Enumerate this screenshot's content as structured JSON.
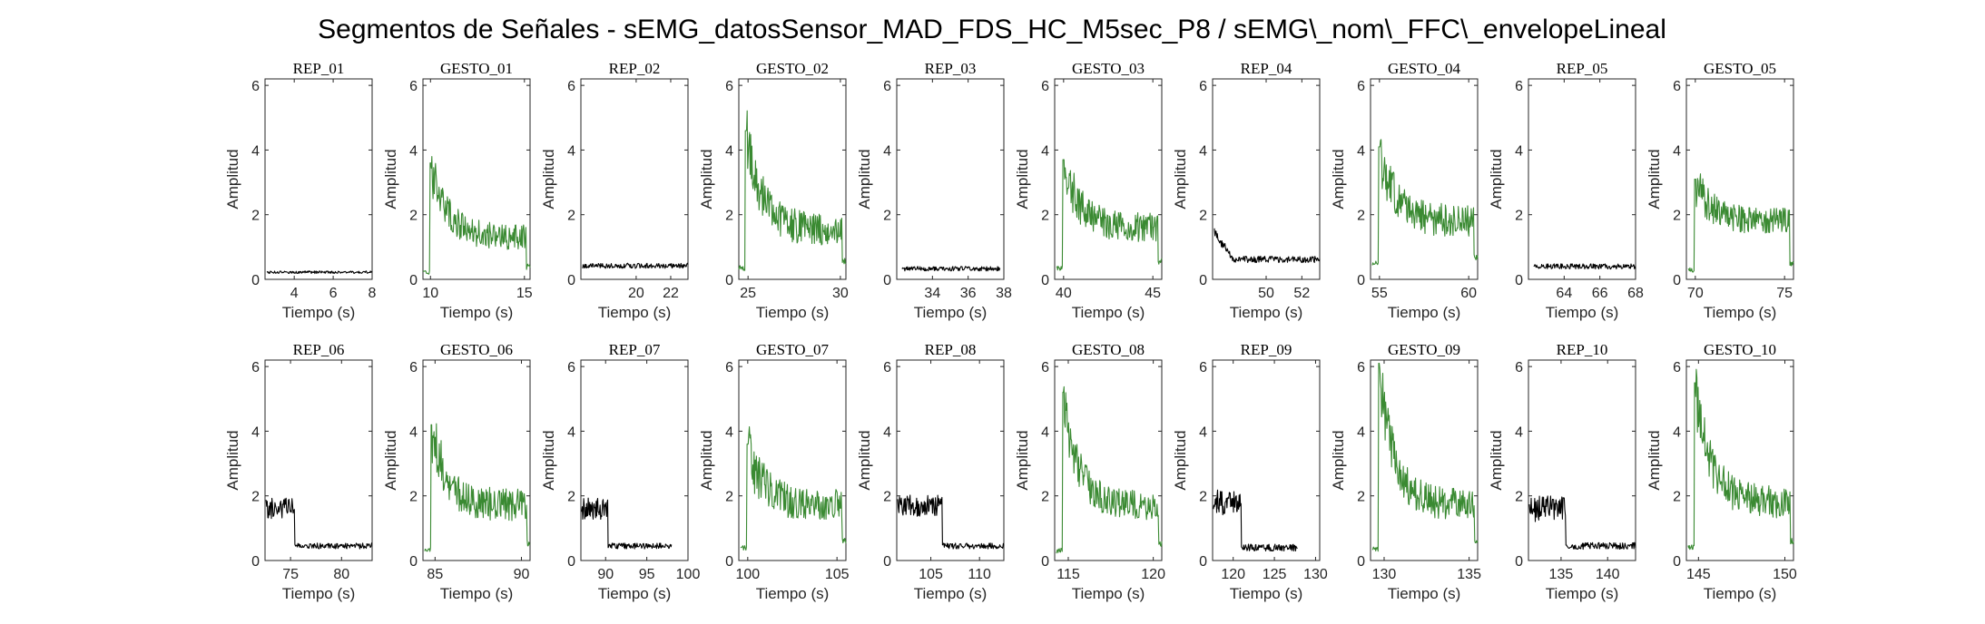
{
  "figure_title": "Segmentos de Señales - sEMG_datosSensor_MAD_FDS_HC_M5sec_P8 / sEMG\\_nom\\_FFC\\_envelopeLineal",
  "colors": {
    "rep": "#000000",
    "gesto": "#3a8a32",
    "axis": "#262626"
  },
  "chart_data": [
    {
      "type": "line",
      "title": "REP_01",
      "xlabel": "Tiempo (s)",
      "ylabel": "Amplitud",
      "xlim": [
        2.5,
        8
      ],
      "ylim": [
        0,
        6.2
      ],
      "xticks": [
        4,
        6,
        8
      ],
      "yticks": [
        0,
        2,
        4,
        6
      ],
      "series": [
        {
          "color": "black",
          "profile": "rest",
          "start": 2.6,
          "end": 8.0,
          "base": 0.22,
          "noise": 0.04,
          "seed": 1
        }
      ]
    },
    {
      "type": "line",
      "title": "GESTO_01",
      "xlabel": "Tiempo (s)",
      "ylabel": "Amplitud",
      "xlim": [
        9.6,
        15.3
      ],
      "ylim": [
        0,
        6.2
      ],
      "xticks": [
        10,
        15
      ],
      "yticks": [
        0,
        2,
        4,
        6
      ],
      "series": [
        {
          "color": "green",
          "profile": "gesture",
          "start": 9.6,
          "end": 15.3,
          "pre": 0.2,
          "peak": 3.6,
          "settle": 1.3,
          "noise": 0.4,
          "seed": 2
        }
      ]
    },
    {
      "type": "line",
      "title": "REP_02",
      "xlabel": "Tiempo (s)",
      "ylabel": "Amplitud",
      "xlim": [
        16.8,
        23
      ],
      "ylim": [
        0,
        6.2
      ],
      "xticks": [
        20,
        22
      ],
      "yticks": [
        0,
        2,
        4,
        6
      ],
      "series": [
        {
          "color": "black",
          "profile": "rest",
          "start": 16.9,
          "end": 23.0,
          "base": 0.42,
          "noise": 0.08,
          "seed": 3
        }
      ]
    },
    {
      "type": "line",
      "title": "GESTO_02",
      "xlabel": "Tiempo (s)",
      "ylabel": "Amplitud",
      "xlim": [
        24.5,
        30.3
      ],
      "ylim": [
        0,
        6.2
      ],
      "xticks": [
        25,
        30
      ],
      "yticks": [
        0,
        2,
        4,
        6
      ],
      "series": [
        {
          "color": "green",
          "profile": "gesture",
          "start": 24.5,
          "end": 30.3,
          "pre": 0.35,
          "peak": 4.6,
          "settle": 1.5,
          "noise": 0.5,
          "seed": 4
        }
      ]
    },
    {
      "type": "line",
      "title": "REP_03",
      "xlabel": "Tiempo (s)",
      "ylabel": "Amplitud",
      "xlim": [
        32,
        38
      ],
      "ylim": [
        0,
        6.2
      ],
      "xticks": [
        34,
        36,
        38
      ],
      "yticks": [
        0,
        2,
        4,
        6
      ],
      "series": [
        {
          "color": "black",
          "profile": "rest",
          "start": 32.3,
          "end": 37.8,
          "base": 0.33,
          "noise": 0.07,
          "seed": 5
        }
      ]
    },
    {
      "type": "line",
      "title": "GESTO_03",
      "xlabel": "Tiempo (s)",
      "ylabel": "Amplitud",
      "xlim": [
        39.5,
        45.5
      ],
      "ylim": [
        0,
        6.2
      ],
      "xticks": [
        40,
        45
      ],
      "yticks": [
        0,
        2,
        4,
        6
      ],
      "series": [
        {
          "color": "green",
          "profile": "gesture",
          "start": 39.6,
          "end": 45.5,
          "pre": 0.35,
          "peak": 3.7,
          "settle": 1.6,
          "noise": 0.45,
          "seed": 6
        }
      ]
    },
    {
      "type": "line",
      "title": "REP_04",
      "xlabel": "Tiempo (s)",
      "ylabel": "Amplitud",
      "xlim": [
        47,
        53
      ],
      "ylim": [
        0,
        6.2
      ],
      "xticks": [
        50,
        52
      ],
      "yticks": [
        0,
        2,
        4,
        6
      ],
      "series": [
        {
          "color": "black",
          "profile": "rest",
          "start": 47.1,
          "end": 53.0,
          "base": 0.62,
          "noise": 0.1,
          "seed": 7,
          "startPeak": 1.6
        }
      ]
    },
    {
      "type": "line",
      "title": "GESTO_04",
      "xlabel": "Tiempo (s)",
      "ylabel": "Amplitud",
      "xlim": [
        54.5,
        60.5
      ],
      "ylim": [
        0,
        6.2
      ],
      "xticks": [
        55,
        60
      ],
      "yticks": [
        0,
        2,
        4,
        6
      ],
      "series": [
        {
          "color": "green",
          "profile": "gesture",
          "start": 54.6,
          "end": 60.5,
          "pre": 0.5,
          "peak": 4.1,
          "settle": 1.8,
          "noise": 0.5,
          "seed": 8
        }
      ]
    },
    {
      "type": "line",
      "title": "REP_05",
      "xlabel": "Tiempo (s)",
      "ylabel": "Amplitud",
      "xlim": [
        62,
        68
      ],
      "ylim": [
        0,
        6.2
      ],
      "xticks": [
        64,
        66,
        68
      ],
      "yticks": [
        0,
        2,
        4,
        6
      ],
      "series": [
        {
          "color": "black",
          "profile": "rest",
          "start": 62.3,
          "end": 68.0,
          "base": 0.4,
          "noise": 0.08,
          "seed": 9
        }
      ]
    },
    {
      "type": "line",
      "title": "GESTO_05",
      "xlabel": "Tiempo (s)",
      "ylabel": "Amplitud",
      "xlim": [
        69.5,
        75.5
      ],
      "ylim": [
        0,
        6.2
      ],
      "xticks": [
        70,
        75
      ],
      "yticks": [
        0,
        2,
        4,
        6
      ],
      "series": [
        {
          "color": "green",
          "profile": "gesture",
          "start": 69.6,
          "end": 75.5,
          "pre": 0.3,
          "peak": 3.1,
          "settle": 1.8,
          "noise": 0.4,
          "seed": 10
        }
      ]
    },
    {
      "type": "line",
      "title": "REP_06",
      "xlabel": "Tiempo (s)",
      "ylabel": "Amplitud",
      "xlim": [
        72.5,
        83
      ],
      "ylim": [
        0,
        6.2
      ],
      "xticks": [
        75,
        80
      ],
      "yticks": [
        0,
        2,
        4,
        6
      ],
      "series": [
        {
          "color": "black",
          "profile": "steprest",
          "start": 72.6,
          "end": 83.0,
          "high": 1.6,
          "step": 75.4,
          "base": 0.45,
          "noise": 0.15,
          "seed": 11
        }
      ]
    },
    {
      "type": "line",
      "title": "GESTO_06",
      "xlabel": "Tiempo (s)",
      "ylabel": "Amplitud",
      "xlim": [
        84.3,
        90.5
      ],
      "ylim": [
        0,
        6.2
      ],
      "xticks": [
        85,
        90
      ],
      "yticks": [
        0,
        2,
        4,
        6
      ],
      "series": [
        {
          "color": "green",
          "profile": "gesture",
          "start": 84.4,
          "end": 90.5,
          "pre": 0.35,
          "peak": 4.2,
          "settle": 1.7,
          "noise": 0.5,
          "seed": 12
        }
      ]
    },
    {
      "type": "line",
      "title": "REP_07",
      "xlabel": "Tiempo (s)",
      "ylabel": "Amplitud",
      "xlim": [
        87,
        100
      ],
      "ylim": [
        0,
        6.2
      ],
      "xticks": [
        90,
        95,
        100
      ],
      "yticks": [
        0,
        2,
        4,
        6
      ],
      "series": [
        {
          "color": "black",
          "profile": "steprest",
          "start": 87.1,
          "end": 98.0,
          "high": 1.6,
          "step": 90.3,
          "base": 0.45,
          "noise": 0.15,
          "seed": 13
        }
      ]
    },
    {
      "type": "line",
      "title": "GESTO_07",
      "xlabel": "Tiempo (s)",
      "ylabel": "Amplitud",
      "xlim": [
        99.5,
        105.5
      ],
      "ylim": [
        0,
        6.2
      ],
      "xticks": [
        100,
        105
      ],
      "yticks": [
        0,
        2,
        4,
        6
      ],
      "series": [
        {
          "color": "green",
          "profile": "gesture",
          "start": 99.6,
          "end": 105.5,
          "pre": 0.4,
          "peak": 3.6,
          "settle": 1.7,
          "noise": 0.5,
          "seed": 14
        }
      ]
    },
    {
      "type": "line",
      "title": "REP_08",
      "xlabel": "Tiempo (s)",
      "ylabel": "Amplitud",
      "xlim": [
        101.5,
        112.5
      ],
      "ylim": [
        0,
        6.2
      ],
      "xticks": [
        105,
        110
      ],
      "yticks": [
        0,
        2,
        4,
        6
      ],
      "series": [
        {
          "color": "black",
          "profile": "steprest",
          "start": 101.6,
          "end": 112.5,
          "high": 1.7,
          "step": 106.2,
          "base": 0.45,
          "noise": 0.15,
          "seed": 15
        }
      ]
    },
    {
      "type": "line",
      "title": "GESTO_08",
      "xlabel": "Tiempo (s)",
      "ylabel": "Amplitud",
      "xlim": [
        114.2,
        120.5
      ],
      "ylim": [
        0,
        6.2
      ],
      "xticks": [
        115,
        120
      ],
      "yticks": [
        0,
        2,
        4,
        6
      ],
      "series": [
        {
          "color": "green",
          "profile": "gesture",
          "start": 114.3,
          "end": 120.5,
          "pre": 0.3,
          "peak": 5.2,
          "settle": 1.7,
          "noise": 0.45,
          "seed": 16
        }
      ]
    },
    {
      "type": "line",
      "title": "REP_09",
      "xlabel": "Tiempo (s)",
      "ylabel": "Amplitud",
      "xlim": [
        117.5,
        130.5
      ],
      "ylim": [
        0,
        6.2
      ],
      "xticks": [
        120,
        125,
        130
      ],
      "yticks": [
        0,
        2,
        4,
        6
      ],
      "series": [
        {
          "color": "black",
          "profile": "steprest",
          "start": 117.6,
          "end": 127.8,
          "high": 1.8,
          "step": 121.0,
          "base": 0.4,
          "noise": 0.18,
          "seed": 17
        }
      ]
    },
    {
      "type": "line",
      "title": "GESTO_09",
      "xlabel": "Tiempo (s)",
      "ylabel": "Amplitud",
      "xlim": [
        129.2,
        135.5
      ],
      "ylim": [
        0,
        6.2
      ],
      "xticks": [
        130,
        135
      ],
      "yticks": [
        0,
        2,
        4,
        6
      ],
      "series": [
        {
          "color": "green",
          "profile": "gesture",
          "start": 129.3,
          "end": 135.5,
          "pre": 0.35,
          "peak": 6.1,
          "settle": 1.7,
          "noise": 0.5,
          "seed": 18
        }
      ]
    },
    {
      "type": "line",
      "title": "REP_10",
      "xlabel": "Tiempo (s)",
      "ylabel": "Amplitud",
      "xlim": [
        131.5,
        143
      ],
      "ylim": [
        0,
        6.2
      ],
      "xticks": [
        135,
        140
      ],
      "yticks": [
        0,
        2,
        4,
        6
      ],
      "series": [
        {
          "color": "black",
          "profile": "steprest",
          "start": 131.6,
          "end": 143.0,
          "high": 1.6,
          "step": 135.5,
          "base": 0.45,
          "noise": 0.18,
          "seed": 19
        }
      ]
    },
    {
      "type": "line",
      "title": "GESTO_10",
      "xlabel": "Tiempo (s)",
      "ylabel": "Amplitud",
      "xlim": [
        144.3,
        150.5
      ],
      "ylim": [
        0,
        6.2
      ],
      "xticks": [
        145,
        150
      ],
      "yticks": [
        0,
        2,
        4,
        6
      ],
      "series": [
        {
          "color": "green",
          "profile": "gesture",
          "start": 144.4,
          "end": 150.5,
          "pre": 0.4,
          "peak": 5.5,
          "settle": 1.8,
          "noise": 0.5,
          "seed": 20
        }
      ]
    }
  ]
}
